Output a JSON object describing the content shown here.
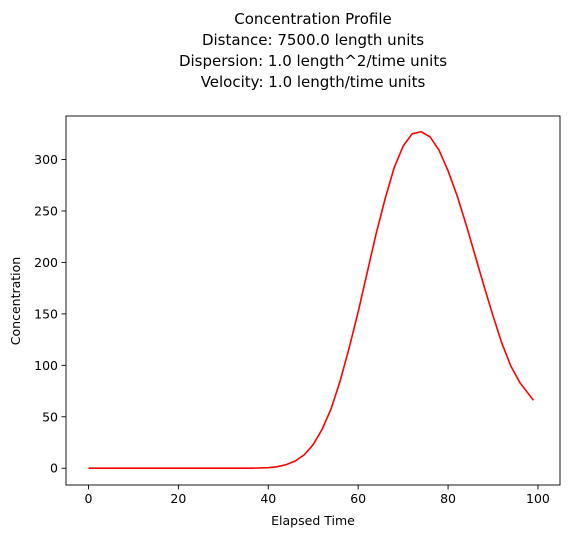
{
  "chart_data": {
    "type": "line",
    "title_lines": [
      "Concentration Profile",
      "Distance: 7500.0 length units",
      "Dispersion: 1.0 length^2/time units",
      "Velocity: 1.0 length/time units"
    ],
    "xlabel": "Elapsed Time",
    "ylabel": "Concentration",
    "xlim": [
      -5,
      104.9
    ],
    "ylim": [
      -16.3,
      342.3
    ],
    "x_ticks": [
      0,
      20,
      40,
      60,
      80,
      100
    ],
    "y_ticks": [
      0,
      50,
      100,
      150,
      200,
      250,
      300
    ],
    "grid": false,
    "series": [
      {
        "color": "#ff0000",
        "x": [
          0,
          10,
          20,
          30,
          36,
          40,
          42,
          44,
          46,
          48,
          50,
          52,
          54,
          56,
          58,
          60,
          62,
          64,
          66,
          68,
          70,
          72,
          74,
          76,
          78,
          80,
          82,
          84,
          86,
          88,
          90,
          92,
          94,
          96,
          99
        ],
        "y": [
          0,
          0,
          0,
          0,
          0,
          0.5,
          1.5,
          3.5,
          7,
          13,
          23,
          38,
          58,
          85,
          117,
          152,
          190,
          228,
          262,
          292,
          313,
          325,
          327,
          322,
          309,
          289,
          265,
          237,
          207,
          177,
          148,
          121,
          99,
          83,
          66
        ]
      }
    ]
  }
}
